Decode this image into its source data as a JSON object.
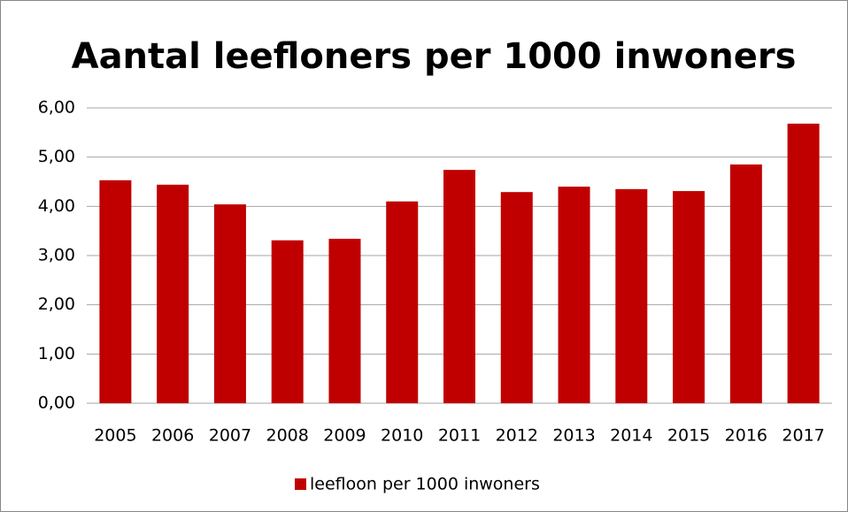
{
  "chart_data": {
    "type": "bar",
    "title": "Aantal leefloners per 1000 inwoners",
    "categories": [
      "2005",
      "2006",
      "2007",
      "2008",
      "2009",
      "2010",
      "2011",
      "2012",
      "2013",
      "2014",
      "2015",
      "2016",
      "2017"
    ],
    "series": [
      {
        "name": "leefloon per 1000 inwoners",
        "color": "#c00000",
        "values": [
          4.53,
          4.44,
          4.04,
          3.31,
          3.34,
          4.1,
          4.74,
          4.29,
          4.4,
          4.35,
          4.31,
          4.85,
          5.68
        ]
      }
    ],
    "ylim": [
      0,
      6
    ],
    "yticks": [
      {
        "value": 0,
        "label": "0,00"
      },
      {
        "value": 1,
        "label": "1,00"
      },
      {
        "value": 2,
        "label": "2,00"
      },
      {
        "value": 3,
        "label": "3,00"
      },
      {
        "value": 4,
        "label": "4,00"
      },
      {
        "value": 5,
        "label": "5,00"
      },
      {
        "value": 6,
        "label": "6,00"
      }
    ],
    "grid": true,
    "legend": "bottom"
  }
}
